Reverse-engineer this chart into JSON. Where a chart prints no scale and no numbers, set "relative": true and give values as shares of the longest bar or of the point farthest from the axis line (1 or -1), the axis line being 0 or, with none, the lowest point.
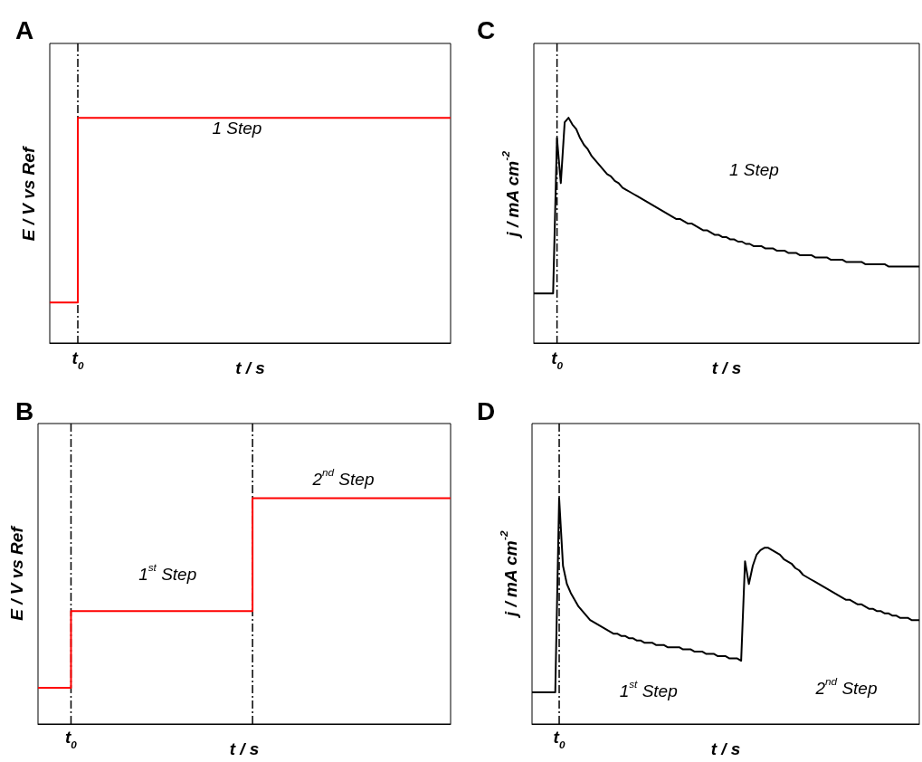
{
  "chart_data": [
    {
      "type": "step",
      "title": "A",
      "xlabel": "t / s",
      "ylabel": "E / V vs Ref",
      "relative": true,
      "marker": "none",
      "categories": [
        null,
        null,
        null,
        null,
        null,
        null,
        null,
        null,
        null,
        null,
        null,
        null,
        null,
        null,
        null,
        null,
        null,
        null,
        null,
        null,
        null,
        null,
        null,
        null,
        null,
        null,
        null,
        null,
        null,
        null,
        null,
        null,
        null,
        null,
        null,
        null,
        null,
        null,
        null,
        null,
        null,
        null,
        null,
        null,
        null,
        null,
        null,
        null,
        null,
        null,
        null,
        null,
        null,
        null,
        null,
        null,
        null,
        null,
        null,
        null,
        null,
        null,
        null,
        null,
        null,
        null,
        null,
        null,
        null,
        null,
        null,
        null,
        null,
        null,
        null,
        null,
        null,
        null,
        null,
        null,
        null,
        null,
        null,
        null,
        null,
        null,
        null,
        null,
        null,
        null,
        null,
        null,
        null,
        null,
        null,
        null,
        null,
        null,
        null,
        null,
        null
      ],
      "series": [
        {
          "color": "#ff0000",
          "values": [
            0.18,
            0.18,
            0.18,
            0.18,
            0.18,
            0.18,
            0.18,
            1,
            1,
            1,
            1,
            1,
            1,
            1,
            1,
            1,
            1,
            1,
            1,
            1,
            1,
            1,
            1,
            1,
            1,
            1,
            1,
            1,
            1,
            1,
            1,
            1,
            1,
            1,
            1,
            1,
            1,
            1,
            1,
            1,
            1,
            1,
            1,
            1,
            1,
            1,
            1,
            1,
            1,
            1,
            1,
            1,
            1,
            1,
            1,
            1,
            1,
            1,
            1,
            1,
            1,
            1,
            1,
            1,
            1,
            1,
            1,
            1,
            1,
            1,
            1,
            1,
            1,
            1,
            1,
            1,
            1,
            1,
            1,
            1,
            1,
            1,
            1,
            1,
            1,
            1,
            1,
            1,
            1,
            1,
            1,
            1,
            1,
            1,
            1,
            1,
            1,
            1,
            1,
            1,
            1
          ]
        }
      ],
      "annotations": [
        "1 Step",
        "t$_{0}$"
      ]
    },
    {
      "type": "step",
      "title": "B",
      "xlabel": "t / s",
      "ylabel": "E / V vs Ref",
      "relative": true,
      "marker": "none",
      "categories": [
        null,
        null,
        null,
        null,
        null,
        null,
        null,
        null,
        null,
        null,
        null,
        null,
        null,
        null,
        null,
        null,
        null,
        null,
        null,
        null,
        null,
        null,
        null,
        null,
        null,
        null,
        null,
        null,
        null,
        null,
        null,
        null,
        null,
        null,
        null,
        null,
        null,
        null,
        null,
        null,
        null,
        null,
        null,
        null,
        null,
        null,
        null,
        null,
        null,
        null,
        null,
        null,
        null,
        null,
        null,
        null,
        null,
        null,
        null,
        null,
        null,
        null,
        null,
        null,
        null,
        null,
        null,
        null,
        null,
        null,
        null,
        null,
        null,
        null,
        null,
        null,
        null,
        null,
        null,
        null,
        null,
        null,
        null,
        null,
        null,
        null,
        null,
        null,
        null,
        null,
        null,
        null,
        null,
        null,
        null,
        null,
        null,
        null,
        null,
        null,
        null
      ],
      "series": [
        {
          "color": "#ff0000",
          "values": [
            0.16,
            0.16,
            0.16,
            0.16,
            0.16,
            0.16,
            0.16,
            0.16,
            0.5,
            0.5,
            0.5,
            0.5,
            0.5,
            0.5,
            0.5,
            0.5,
            0.5,
            0.5,
            0.5,
            0.5,
            0.5,
            0.5,
            0.5,
            0.5,
            0.5,
            0.5,
            0.5,
            0.5,
            0.5,
            0.5,
            0.5,
            0.5,
            0.5,
            0.5,
            0.5,
            0.5,
            0.5,
            0.5,
            0.5,
            0.5,
            0.5,
            0.5,
            0.5,
            0.5,
            0.5,
            0.5,
            0.5,
            0.5,
            0.5,
            0.5,
            0.5,
            0.5,
            1,
            1,
            1,
            1,
            1,
            1,
            1,
            1,
            1,
            1,
            1,
            1,
            1,
            1,
            1,
            1,
            1,
            1,
            1,
            1,
            1,
            1,
            1,
            1,
            1,
            1,
            1,
            1,
            1,
            1,
            1,
            1,
            1,
            1,
            1,
            1,
            1,
            1,
            1,
            1,
            1,
            1,
            1,
            1,
            1,
            1,
            1,
            1,
            1
          ]
        }
      ],
      "annotations": [
        "1$^{st}$ Step",
        "2$^{nd}$ Step",
        "t$_{0}$"
      ]
    },
    {
      "type": "line",
      "title": "C",
      "xlabel": "t / s",
      "ylabel": "j / mA cm$^{-2}$",
      "relative": true,
      "marker": "none",
      "categories": [
        null,
        null,
        null,
        null,
        null,
        null,
        null,
        null,
        null,
        null,
        null,
        null,
        null,
        null,
        null,
        null,
        null,
        null,
        null,
        null,
        null,
        null,
        null,
        null,
        null,
        null,
        null,
        null,
        null,
        null,
        null,
        null,
        null,
        null,
        null,
        null,
        null,
        null,
        null,
        null,
        null,
        null,
        null,
        null,
        null,
        null,
        null,
        null,
        null,
        null,
        null,
        null,
        null,
        null,
        null,
        null,
        null,
        null,
        null,
        null,
        null,
        null,
        null,
        null,
        null,
        null,
        null,
        null,
        null,
        null,
        null,
        null,
        null,
        null,
        null,
        null,
        null,
        null,
        null,
        null,
        null,
        null,
        null,
        null,
        null,
        null,
        null,
        null,
        null,
        null,
        null,
        null,
        null,
        null,
        null,
        null,
        null,
        null,
        null,
        null,
        null
      ],
      "series": [
        {
          "color": "#000000",
          "values": [
            0.22,
            0.22,
            0.22,
            0.22,
            0.22,
            0.22,
            0.91,
            0.71,
            0.98,
            1,
            0.97,
            0.95,
            0.91,
            0.88,
            0.86,
            0.83,
            0.81,
            0.79,
            0.77,
            0.75,
            0.74,
            0.72,
            0.71,
            0.69,
            0.68,
            0.67,
            0.66,
            0.65,
            0.64,
            0.63,
            0.62,
            0.61,
            0.6,
            0.59,
            0.58,
            0.57,
            0.56,
            0.55,
            0.55,
            0.54,
            0.53,
            0.53,
            0.52,
            0.51,
            0.5,
            0.5,
            0.49,
            0.48,
            0.48,
            0.47,
            0.47,
            0.46,
            0.46,
            0.45,
            0.45,
            0.44,
            0.44,
            0.43,
            0.43,
            0.43,
            0.42,
            0.42,
            0.42,
            0.41,
            0.41,
            0.41,
            0.4,
            0.4,
            0.4,
            0.39,
            0.39,
            0.39,
            0.39,
            0.38,
            0.38,
            0.38,
            0.38,
            0.37,
            0.37,
            0.37,
            0.37,
            0.36,
            0.36,
            0.36,
            0.36,
            0.36,
            0.35,
            0.35,
            0.35,
            0.35,
            0.35,
            0.35,
            0.34,
            0.34,
            0.34,
            0.34,
            0.34,
            0.34,
            0.34,
            0.34,
            0.34
          ]
        }
      ],
      "annotations": [
        "1 Step",
        "t$_{0}$"
      ]
    },
    {
      "type": "line",
      "title": "D",
      "xlabel": "t / s",
      "ylabel": "j / mA cm$^{-2}$",
      "relative": true,
      "marker": "none",
      "categories": [
        null,
        null,
        null,
        null,
        null,
        null,
        null,
        null,
        null,
        null,
        null,
        null,
        null,
        null,
        null,
        null,
        null,
        null,
        null,
        null,
        null,
        null,
        null,
        null,
        null,
        null,
        null,
        null,
        null,
        null,
        null,
        null,
        null,
        null,
        null,
        null,
        null,
        null,
        null,
        null,
        null,
        null,
        null,
        null,
        null,
        null,
        null,
        null,
        null,
        null,
        null,
        null,
        null,
        null,
        null,
        null,
        null,
        null,
        null,
        null,
        null,
        null,
        null,
        null,
        null,
        null,
        null,
        null,
        null,
        null,
        null,
        null,
        null,
        null,
        null,
        null,
        null,
        null,
        null,
        null,
        null,
        null,
        null,
        null,
        null,
        null,
        null,
        null,
        null,
        null,
        null,
        null,
        null,
        null,
        null,
        null,
        null,
        null,
        null,
        null,
        null
      ],
      "series": [
        {
          "color": "#000000",
          "values": [
            0.14,
            0.14,
            0.14,
            0.14,
            0.14,
            0.14,
            0.14,
            1,
            0.7,
            0.62,
            0.58,
            0.55,
            0.52,
            0.5,
            0.48,
            0.46,
            0.45,
            0.44,
            0.43,
            0.42,
            0.41,
            0.4,
            0.4,
            0.39,
            0.39,
            0.38,
            0.38,
            0.37,
            0.37,
            0.36,
            0.36,
            0.36,
            0.35,
            0.35,
            0.35,
            0.34,
            0.34,
            0.34,
            0.34,
            0.33,
            0.33,
            0.33,
            0.32,
            0.32,
            0.32,
            0.31,
            0.31,
            0.31,
            0.3,
            0.3,
            0.3,
            0.29,
            0.29,
            0.29,
            0.28,
            0.72,
            0.62,
            0.7,
            0.75,
            0.77,
            0.78,
            0.78,
            0.77,
            0.76,
            0.75,
            0.73,
            0.72,
            0.71,
            0.69,
            0.68,
            0.66,
            0.65,
            0.64,
            0.63,
            0.62,
            0.61,
            0.6,
            0.59,
            0.58,
            0.57,
            0.56,
            0.55,
            0.55,
            0.54,
            0.53,
            0.53,
            0.52,
            0.51,
            0.51,
            0.5,
            0.5,
            0.49,
            0.49,
            0.48,
            0.48,
            0.47,
            0.47,
            0.47,
            0.46,
            0.46,
            0.46
          ]
        }
      ],
      "annotations": [
        "1$^{st}$ Step",
        "2$^{nd}$ Step",
        "t$_{0}$"
      ]
    }
  ]
}
